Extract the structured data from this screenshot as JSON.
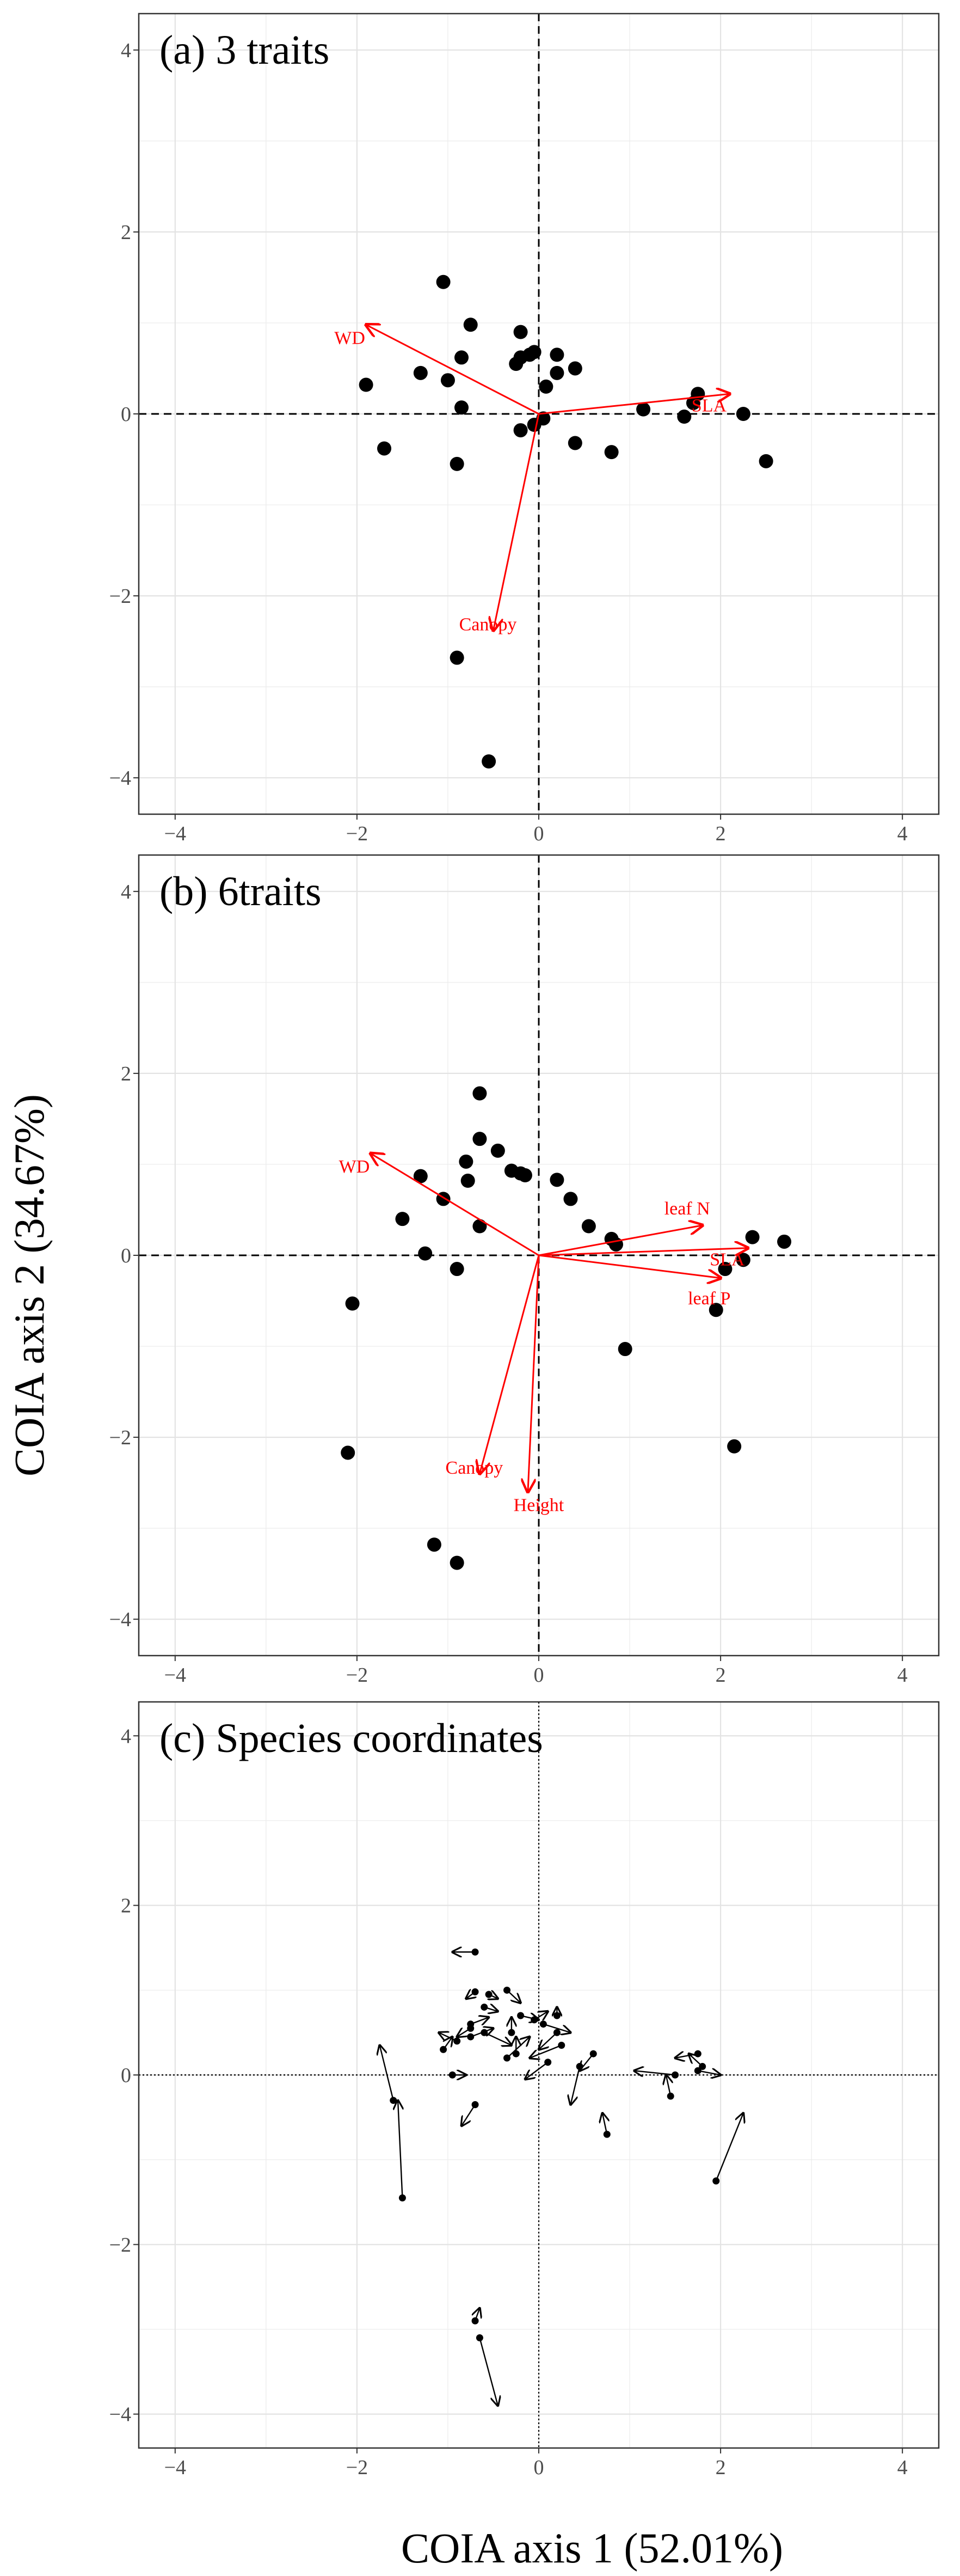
{
  "figure": {
    "ylabel": "COIA axis 2 (34.67%)",
    "xlabel": "COIA axis 1 (52.01%)"
  },
  "colors": {
    "points": "#000000",
    "vectors": "#ff0000",
    "grid": "#ebebeb",
    "frame": "#333333",
    "species_arrows": "#000000"
  },
  "chart_data": [
    {
      "type": "scatter",
      "title": "(a) 3 traits",
      "xlim": [
        -4.4,
        4.4
      ],
      "ylim": [
        -4.4,
        4.4
      ],
      "xticks": [
        -4,
        -2,
        0,
        2,
        4
      ],
      "yticks": [
        -4,
        -2,
        0,
        2,
        4
      ],
      "grid": true,
      "reference_lines": "dashed",
      "points": [
        [
          -1.05,
          1.45
        ],
        [
          -0.75,
          0.98
        ],
        [
          -1.0,
          0.37
        ],
        [
          -1.3,
          0.45
        ],
        [
          -1.9,
          0.32
        ],
        [
          -0.85,
          0.62
        ],
        [
          -0.85,
          0.07
        ],
        [
          -1.7,
          -0.38
        ],
        [
          -0.9,
          -0.55
        ],
        [
          -0.2,
          0.9
        ],
        [
          -0.2,
          0.62
        ],
        [
          -0.25,
          0.55
        ],
        [
          -0.1,
          0.65
        ],
        [
          -0.05,
          0.68
        ],
        [
          0.2,
          0.65
        ],
        [
          0.4,
          0.5
        ],
        [
          0.2,
          0.45
        ],
        [
          0.08,
          0.3
        ],
        [
          -0.2,
          -0.18
        ],
        [
          -0.05,
          -0.12
        ],
        [
          0.05,
          -0.05
        ],
        [
          0.4,
          -0.32
        ],
        [
          0.8,
          -0.42
        ],
        [
          1.15,
          0.05
        ],
        [
          1.6,
          -0.03
        ],
        [
          1.7,
          0.12
        ],
        [
          1.75,
          0.22
        ],
        [
          2.25,
          0.0
        ],
        [
          2.5,
          -0.52
        ],
        [
          -0.9,
          -2.68
        ],
        [
          -0.55,
          -3.82
        ]
      ],
      "vectors": [
        {
          "label": "WD",
          "x": -1.9,
          "y": 0.98
        },
        {
          "label": "SLA",
          "x": 2.1,
          "y": 0.22
        },
        {
          "label": "Canopy",
          "x": -0.5,
          "y": -2.38
        }
      ]
    },
    {
      "type": "scatter",
      "title": "(b) 6traits",
      "xlim": [
        -4.4,
        4.4
      ],
      "ylim": [
        -4.4,
        4.4
      ],
      "xticks": [
        -4,
        -2,
        0,
        2,
        4
      ],
      "yticks": [
        -4,
        -2,
        0,
        2,
        4
      ],
      "grid": true,
      "reference_lines": "dashed",
      "points": [
        [
          -0.65,
          1.78
        ],
        [
          -0.65,
          1.28
        ],
        [
          -0.45,
          1.15
        ],
        [
          -0.8,
          1.03
        ],
        [
          -1.3,
          0.87
        ],
        [
          -0.78,
          0.82
        ],
        [
          -0.3,
          0.93
        ],
        [
          -0.2,
          0.9
        ],
        [
          -0.15,
          0.88
        ],
        [
          0.2,
          0.83
        ],
        [
          0.35,
          0.62
        ],
        [
          -1.05,
          0.62
        ],
        [
          -1.5,
          0.4
        ],
        [
          -0.65,
          0.32
        ],
        [
          0.55,
          0.32
        ],
        [
          0.8,
          0.18
        ],
        [
          0.85,
          0.12
        ],
        [
          -1.25,
          0.02
        ],
        [
          -0.9,
          -0.15
        ],
        [
          2.35,
          0.2
        ],
        [
          2.7,
          0.15
        ],
        [
          2.25,
          -0.05
        ],
        [
          2.05,
          -0.15
        ],
        [
          1.95,
          -0.6
        ],
        [
          0.95,
          -1.03
        ],
        [
          -2.05,
          -0.53
        ],
        [
          -2.1,
          -2.17
        ],
        [
          2.15,
          -2.1
        ],
        [
          -1.15,
          -3.18
        ],
        [
          -0.9,
          -3.38
        ]
      ],
      "vectors": [
        {
          "label": "WD",
          "x": -1.85,
          "y": 1.12
        },
        {
          "label": "leaf N",
          "x": 1.8,
          "y": 0.33
        },
        {
          "label": "SLA",
          "x": 2.3,
          "y": 0.08
        },
        {
          "label": "leaf P",
          "x": 2.0,
          "y": -0.25
        },
        {
          "label": "Canopy",
          "x": -0.65,
          "y": -2.4
        },
        {
          "label": "Height",
          "x": -0.12,
          "y": -2.6
        }
      ]
    },
    {
      "type": "scatter",
      "title": "(c) Species coordinates",
      "xlim": [
        -4.4,
        4.4
      ],
      "ylim": [
        -4.4,
        4.4
      ],
      "xticks": [
        -4,
        -2,
        0,
        2,
        4
      ],
      "yticks": [
        -4,
        -2,
        0,
        2,
        4
      ],
      "grid": true,
      "reference_lines": "dotted",
      "arrows": [
        [
          -0.7,
          1.45,
          -0.95,
          1.45
        ],
        [
          -0.7,
          0.98,
          -0.8,
          0.9
        ],
        [
          -0.55,
          0.95,
          -0.45,
          0.9
        ],
        [
          -0.35,
          1.0,
          -0.2,
          0.85
        ],
        [
          -0.6,
          0.8,
          -0.45,
          0.75
        ],
        [
          -0.75,
          0.6,
          -0.55,
          0.68
        ],
        [
          -0.75,
          0.55,
          -0.9,
          0.45
        ],
        [
          -0.9,
          0.4,
          -1.1,
          0.5
        ],
        [
          -1.05,
          0.3,
          -0.95,
          0.45
        ],
        [
          -0.75,
          0.45,
          -0.5,
          0.55
        ],
        [
          -0.6,
          0.5,
          -0.3,
          0.35
        ],
        [
          -0.3,
          0.5,
          -0.3,
          0.68
        ],
        [
          -0.2,
          0.7,
          0.0,
          0.65
        ],
        [
          -0.05,
          0.65,
          0.1,
          0.75
        ],
        [
          0.05,
          0.6,
          0.35,
          0.5
        ],
        [
          0.2,
          0.7,
          0.2,
          0.8
        ],
        [
          0.2,
          0.5,
          0.0,
          0.3
        ],
        [
          0.25,
          0.35,
          -0.1,
          0.2
        ],
        [
          -0.35,
          0.2,
          -0.1,
          0.45
        ],
        [
          0.1,
          0.15,
          -0.15,
          -0.05
        ],
        [
          0.45,
          0.1,
          0.35,
          -0.35
        ],
        [
          0.6,
          0.25,
          0.45,
          0.05
        ],
        [
          -0.25,
          0.25,
          -0.25,
          0.45
        ],
        [
          -0.95,
          0.0,
          -0.8,
          0.0
        ],
        [
          -0.7,
          -0.35,
          -0.85,
          -0.6
        ],
        [
          -1.6,
          -0.3,
          -1.75,
          0.35
        ],
        [
          -1.5,
          -1.45,
          -1.55,
          -0.3
        ],
        [
          0.75,
          -0.7,
          0.7,
          -0.45
        ],
        [
          1.45,
          -0.25,
          1.4,
          0.0
        ],
        [
          1.5,
          0.0,
          1.05,
          0.05
        ],
        [
          1.75,
          0.05,
          2.0,
          0.0
        ],
        [
          1.8,
          0.1,
          1.65,
          0.25
        ],
        [
          1.75,
          0.25,
          1.5,
          0.2
        ],
        [
          1.95,
          -1.25,
          2.25,
          -0.45
        ],
        [
          -0.7,
          -2.9,
          -0.65,
          -2.75
        ],
        [
          -0.65,
          -3.1,
          -0.45,
          -3.9
        ]
      ]
    }
  ]
}
